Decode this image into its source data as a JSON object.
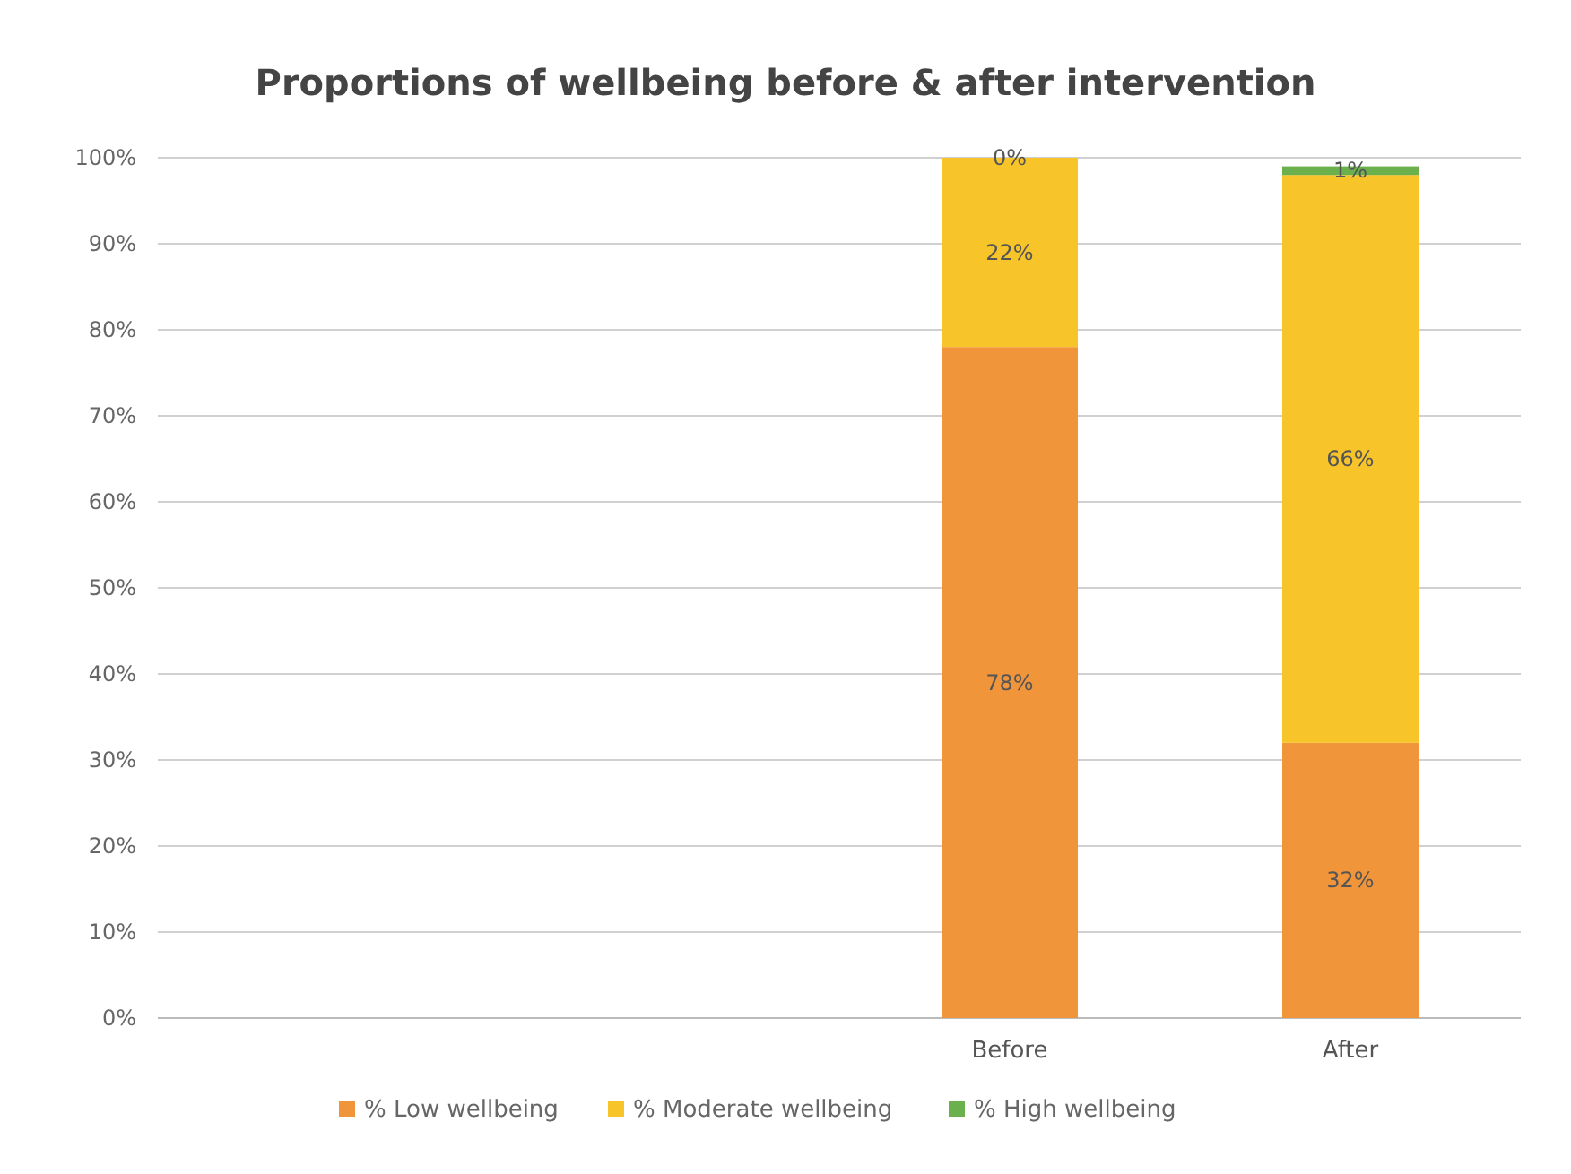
{
  "chart_data": {
    "type": "bar",
    "title": "Proportions of wellbeing before & after intervention",
    "stacked": true,
    "categories": [
      null,
      null,
      "Before",
      "After"
    ],
    "series": [
      {
        "name": "% Low wellbeing",
        "color": "#f0953a",
        "values": [
          null,
          null,
          78,
          32
        ],
        "value_labels": [
          null,
          null,
          "78%",
          "32%"
        ]
      },
      {
        "name": "% Moderate wellbeing",
        "color": "#f7c42a",
        "values": [
          null,
          null,
          22,
          66
        ],
        "value_labels": [
          null,
          null,
          "22%",
          "66%"
        ]
      },
      {
        "name": "% High wellbeing",
        "color": "#6ab04c",
        "values": [
          null,
          null,
          0,
          1
        ],
        "value_labels": [
          null,
          null,
          "0%",
          "1%"
        ]
      }
    ],
    "ylim": [
      0,
      100
    ],
    "yticks": [
      {
        "value": 0,
        "label": "0%"
      },
      {
        "value": 10,
        "label": "10%"
      },
      {
        "value": 20,
        "label": "20%"
      },
      {
        "value": 30,
        "label": "30%"
      },
      {
        "value": 40,
        "label": "40%"
      },
      {
        "value": 50,
        "label": "50%"
      },
      {
        "value": 60,
        "label": "60%"
      },
      {
        "value": 70,
        "label": "70%"
      },
      {
        "value": 80,
        "label": "80%"
      },
      {
        "value": 90,
        "label": "90%"
      },
      {
        "value": 100,
        "label": "100%"
      }
    ],
    "grid": "y",
    "legend": "bottom"
  }
}
